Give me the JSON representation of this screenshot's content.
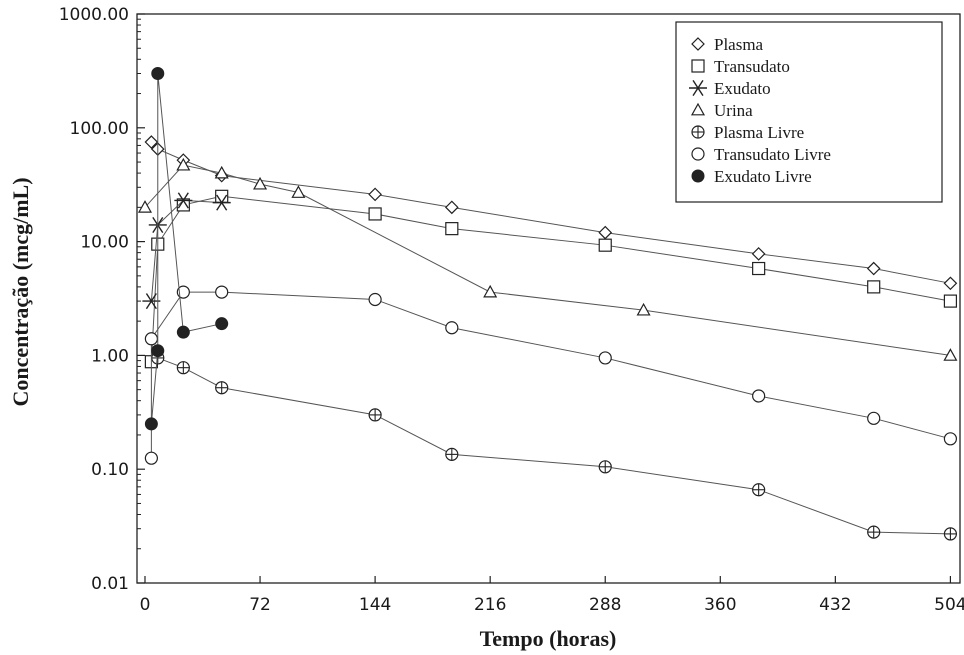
{
  "chart_data": {
    "type": "scatter",
    "title": "",
    "xlabel": "Tempo (horas)",
    "ylabel": "Concentração (mcg/mL)",
    "x_scale": "linear",
    "y_scale": "log",
    "xlim": [
      -5,
      510
    ],
    "ylim": [
      0.01,
      1000
    ],
    "x_ticks": [
      0,
      72,
      144,
      216,
      288,
      360,
      432,
      504
    ],
    "x_tick_labels": [
      "0",
      "72",
      "144",
      "216",
      "288",
      "360",
      "432",
      "504"
    ],
    "y_ticks": [
      0.01,
      0.1,
      1,
      10,
      100,
      1000
    ],
    "y_tick_labels": [
      "0.01",
      "0.10",
      "1.00",
      "10.00",
      "100.00",
      "1000.00"
    ],
    "grid": false,
    "legend_position": "top-right",
    "series": [
      {
        "name": "Plasma",
        "marker": "diamond",
        "connected": true,
        "points": [
          [
            4,
            75
          ],
          [
            8,
            65
          ],
          [
            24,
            52
          ],
          [
            48,
            38
          ],
          [
            144,
            26
          ],
          [
            192,
            20
          ],
          [
            288,
            12
          ],
          [
            384,
            7.8
          ],
          [
            456,
            5.8
          ],
          [
            504,
            4.3
          ]
        ]
      },
      {
        "name": "Transudato",
        "marker": "square",
        "connected": true,
        "points": [
          [
            4,
            0.88
          ],
          [
            8,
            9.5
          ],
          [
            24,
            21
          ],
          [
            48,
            25
          ],
          [
            144,
            17.5
          ],
          [
            192,
            13
          ],
          [
            288,
            9.3
          ],
          [
            384,
            5.8
          ],
          [
            456,
            4.0
          ],
          [
            504,
            3.0
          ]
        ]
      },
      {
        "name": "Exudato",
        "marker": "asterisk",
        "connected": true,
        "points": [
          [
            4,
            3.0
          ],
          [
            8,
            14
          ],
          [
            24,
            23
          ],
          [
            48,
            22
          ]
        ]
      },
      {
        "name": "Urina",
        "marker": "triangle",
        "connected": true,
        "points": [
          [
            0,
            20
          ],
          [
            24,
            47
          ],
          [
            48,
            40
          ],
          [
            72,
            32
          ],
          [
            96,
            27
          ],
          [
            216,
            3.6
          ],
          [
            312,
            2.5
          ],
          [
            504,
            1.0
          ]
        ]
      },
      {
        "name": "Plasma Livre",
        "marker": "circle-cross",
        "connected": true,
        "points": [
          [
            8,
            0.95
          ],
          [
            24,
            0.78
          ],
          [
            48,
            0.52
          ],
          [
            144,
            0.3
          ],
          [
            192,
            0.135
          ],
          [
            288,
            0.105
          ],
          [
            384,
            0.066
          ],
          [
            456,
            0.028
          ],
          [
            504,
            0.027
          ]
        ]
      },
      {
        "name": "Transudato Livre",
        "marker": "circle",
        "connected": true,
        "points": [
          [
            4,
            0.125
          ],
          [
            4,
            1.4
          ],
          [
            24,
            3.6
          ],
          [
            48,
            3.6
          ],
          [
            144,
            3.1
          ],
          [
            192,
            1.75
          ],
          [
            288,
            0.95
          ],
          [
            384,
            0.44
          ],
          [
            456,
            0.28
          ],
          [
            504,
            0.185
          ]
        ]
      },
      {
        "name": "Exudato Livre",
        "marker": "filled-circle",
        "connected": true,
        "points": [
          [
            4,
            0.25
          ],
          [
            8,
            1.1
          ],
          [
            8,
            300
          ],
          [
            24,
            1.6
          ],
          [
            48,
            1.9
          ]
        ]
      }
    ]
  }
}
